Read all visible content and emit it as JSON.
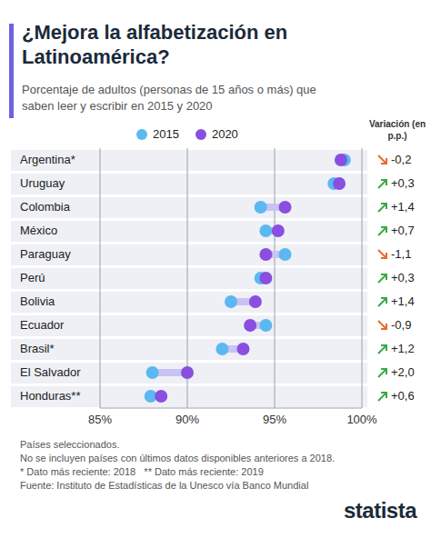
{
  "chart_data": {
    "type": "dumbbell",
    "title": "¿Mejora la alfabetización en Latinoamérica?",
    "subtitle": "Porcentaje de adultos (personas de 15 años o más) que saben leer y escribir en 2015 y 2020",
    "orientation": "horizontal",
    "categories": [
      "Argentina*",
      "Uruguay",
      "Colombia",
      "México",
      "Paraguay",
      "Perú",
      "Bolivia",
      "Ecuador",
      "Brasil*",
      "El Salvador",
      "Honduras**"
    ],
    "series": [
      {
        "name": "2015",
        "color": "#5cb8f0",
        "values": [
          99.0,
          98.4,
          94.2,
          94.5,
          95.6,
          94.2,
          92.5,
          94.5,
          92.0,
          88.0,
          87.9
        ]
      },
      {
        "name": "2020",
        "color": "#8a4ee0",
        "values": [
          98.8,
          98.7,
          95.6,
          95.2,
          94.5,
          94.5,
          93.9,
          93.6,
          93.2,
          90.0,
          88.5
        ]
      }
    ],
    "xlim": [
      85,
      100
    ],
    "xticks": [
      {
        "value": 85,
        "label": "85%"
      },
      {
        "value": 90,
        "label": "90%"
      },
      {
        "value": 95,
        "label": "95%"
      },
      {
        "value": 100,
        "label": "100%"
      }
    ],
    "grid": true,
    "legend": "top",
    "variation": {
      "title": "Variación (en p.p.)",
      "values": [
        -0.2,
        0.3,
        1.4,
        0.7,
        -1.1,
        0.3,
        1.4,
        -0.9,
        1.2,
        2.0,
        0.6
      ],
      "value_labels": [
        "-0,2",
        "+0,3",
        "+1,4",
        "+0,7",
        "-1,1",
        "+0,3",
        "+1,4",
        "-0,9",
        "+1,2",
        "+2,0",
        "+0,6"
      ]
    },
    "notes": [
      "Países seleccionados.",
      "No se incluyen países con últimos datos disponibles anteriores a 2018.",
      "* Dato más reciente: 2018   ** Dato más reciente: 2019"
    ],
    "source": "Fuente: Instituto de Estadísticas de la Unesco vía Banco Mundial",
    "logo": "statista"
  }
}
